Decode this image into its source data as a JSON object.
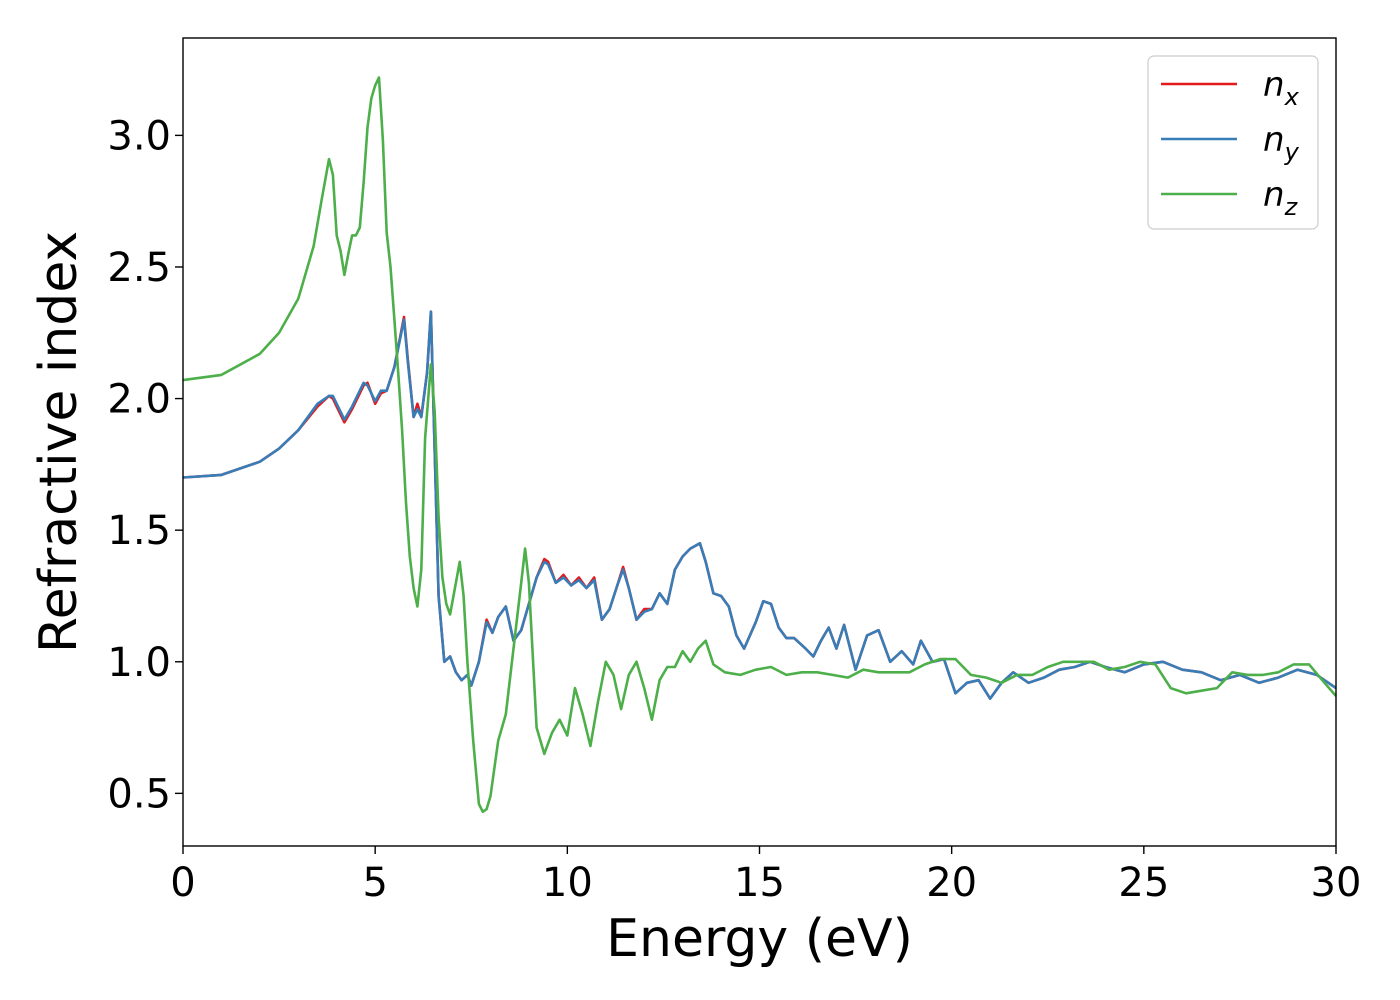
{
  "chart_data": {
    "type": "line",
    "xlabel": "Energy (eV)",
    "ylabel": "Refractive index",
    "xlim": [
      0,
      30
    ],
    "ylim": [
      0.3,
      3.37
    ],
    "xticks": [
      0,
      5,
      10,
      15,
      20,
      25,
      30
    ],
    "xtick_labels": [
      "0",
      "5",
      "10",
      "15",
      "20",
      "25",
      "30"
    ],
    "yticks": [
      0.5,
      1.0,
      1.5,
      2.0,
      2.5,
      3.0
    ],
    "ytick_labels": [
      "0.5",
      "1.0",
      "1.5",
      "2.0",
      "2.5",
      "3.0"
    ],
    "grid": false,
    "legend_position": "top-right",
    "series": [
      {
        "name": "n_x",
        "legend_base": "n",
        "legend_sub": "x",
        "color": "#e41a1c",
        "x": [
          0,
          1,
          2,
          2.5,
          3,
          3.5,
          3.8,
          3.9,
          4.0,
          4.2,
          4.4,
          4.7,
          4.8,
          5.0,
          5.15,
          5.3,
          5.5,
          5.75,
          5.85,
          6.0,
          6.1,
          6.2,
          6.35,
          6.45,
          6.55,
          6.65,
          6.8,
          6.95,
          7.1,
          7.25,
          7.4,
          7.5,
          7.7,
          7.9,
          8.05,
          8.2,
          8.4,
          8.6,
          8.8,
          9.0,
          9.2,
          9.4,
          9.5,
          9.7,
          9.9,
          10.1,
          10.3,
          10.5,
          10.7,
          10.9,
          11.1,
          11.3,
          11.45,
          11.6,
          11.8,
          12.0,
          12.2,
          12.4,
          12.6,
          12.8,
          13.0,
          13.2,
          13.45,
          13.6,
          13.8,
          14.0,
          14.2,
          14.4,
          14.6,
          14.9,
          15.1,
          15.3,
          15.5,
          15.7,
          15.9,
          16.2,
          16.4,
          16.6,
          16.8,
          17.0,
          17.2,
          17.5,
          17.8,
          18.1,
          18.4,
          18.7,
          19.0,
          19.2,
          19.5,
          19.8,
          20.1,
          20.4,
          20.7,
          21.0,
          21.3,
          21.6,
          22.0,
          22.4,
          22.8,
          23.2,
          23.6,
          24.0,
          24.5,
          25.0,
          25.5,
          26.0,
          26.5,
          27.0,
          27.5,
          28.0,
          28.5,
          29.0,
          29.5,
          30.0
        ],
        "y": [
          1.7,
          1.71,
          1.76,
          1.81,
          1.88,
          1.97,
          2.01,
          2.0,
          1.97,
          1.91,
          1.96,
          2.05,
          2.06,
          1.98,
          2.02,
          2.03,
          2.12,
          2.31,
          2.15,
          1.93,
          1.98,
          1.93,
          2.1,
          2.33,
          1.8,
          1.25,
          1.0,
          1.02,
          0.96,
          0.93,
          0.95,
          0.91,
          1.0,
          1.16,
          1.11,
          1.17,
          1.21,
          1.08,
          1.12,
          1.22,
          1.32,
          1.39,
          1.38,
          1.3,
          1.33,
          1.29,
          1.32,
          1.28,
          1.32,
          1.16,
          1.2,
          1.29,
          1.36,
          1.28,
          1.16,
          1.2,
          1.2,
          1.26,
          1.22,
          1.35,
          1.4,
          1.43,
          1.45,
          1.38,
          1.26,
          1.25,
          1.21,
          1.1,
          1.05,
          1.15,
          1.23,
          1.22,
          1.13,
          1.09,
          1.09,
          1.05,
          1.02,
          1.08,
          1.13,
          1.05,
          1.14,
          0.97,
          1.1,
          1.12,
          1.0,
          1.04,
          0.99,
          1.08,
          1.0,
          1.01,
          0.88,
          0.92,
          0.93,
          0.86,
          0.92,
          0.96,
          0.92,
          0.94,
          0.97,
          0.98,
          1.0,
          0.98,
          0.96,
          0.99,
          1.0,
          0.97,
          0.96,
          0.93,
          0.95,
          0.92,
          0.94,
          0.97,
          0.95,
          0.9
        ]
      },
      {
        "name": "n_y",
        "legend_base": "n",
        "legend_sub": "y",
        "color": "#377eb8",
        "x": [
          0,
          1,
          2,
          2.5,
          3,
          3.5,
          3.8,
          3.9,
          4.0,
          4.2,
          4.4,
          4.7,
          4.8,
          5.0,
          5.15,
          5.3,
          5.5,
          5.75,
          5.85,
          6.0,
          6.1,
          6.2,
          6.35,
          6.45,
          6.55,
          6.65,
          6.8,
          6.95,
          7.1,
          7.25,
          7.4,
          7.5,
          7.7,
          7.9,
          8.05,
          8.2,
          8.4,
          8.6,
          8.8,
          9.0,
          9.2,
          9.4,
          9.5,
          9.7,
          9.9,
          10.1,
          10.3,
          10.5,
          10.7,
          10.9,
          11.1,
          11.3,
          11.45,
          11.6,
          11.8,
          12.0,
          12.2,
          12.4,
          12.6,
          12.8,
          13.0,
          13.2,
          13.45,
          13.6,
          13.8,
          14.0,
          14.2,
          14.4,
          14.6,
          14.9,
          15.1,
          15.3,
          15.5,
          15.7,
          15.9,
          16.2,
          16.4,
          16.6,
          16.8,
          17.0,
          17.2,
          17.5,
          17.8,
          18.1,
          18.4,
          18.7,
          19.0,
          19.2,
          19.5,
          19.8,
          20.1,
          20.4,
          20.7,
          21.0,
          21.3,
          21.6,
          22.0,
          22.4,
          22.8,
          23.2,
          23.6,
          24.0,
          24.5,
          25.0,
          25.5,
          26.0,
          26.5,
          27.0,
          27.5,
          28.0,
          28.5,
          29.0,
          29.5,
          30.0
        ],
        "y": [
          1.7,
          1.71,
          1.76,
          1.81,
          1.88,
          1.98,
          2.01,
          2.01,
          1.98,
          1.92,
          1.97,
          2.06,
          2.05,
          1.99,
          2.03,
          2.03,
          2.12,
          2.3,
          2.14,
          1.93,
          1.96,
          1.93,
          2.1,
          2.33,
          1.8,
          1.25,
          1.0,
          1.02,
          0.96,
          0.93,
          0.95,
          0.91,
          1.0,
          1.15,
          1.11,
          1.17,
          1.21,
          1.08,
          1.12,
          1.22,
          1.32,
          1.38,
          1.37,
          1.3,
          1.32,
          1.29,
          1.31,
          1.28,
          1.31,
          1.16,
          1.2,
          1.29,
          1.35,
          1.28,
          1.16,
          1.19,
          1.2,
          1.26,
          1.22,
          1.35,
          1.4,
          1.43,
          1.45,
          1.38,
          1.26,
          1.25,
          1.21,
          1.1,
          1.05,
          1.15,
          1.23,
          1.22,
          1.13,
          1.09,
          1.09,
          1.05,
          1.02,
          1.08,
          1.13,
          1.05,
          1.14,
          0.97,
          1.1,
          1.12,
          1.0,
          1.04,
          0.99,
          1.08,
          1.0,
          1.01,
          0.88,
          0.92,
          0.93,
          0.86,
          0.92,
          0.96,
          0.92,
          0.94,
          0.97,
          0.98,
          1.0,
          0.98,
          0.96,
          0.99,
          1.0,
          0.97,
          0.96,
          0.93,
          0.95,
          0.92,
          0.94,
          0.97,
          0.95,
          0.9
        ]
      },
      {
        "name": "n_z",
        "legend_base": "n",
        "legend_sub": "z",
        "color": "#4daf4a",
        "x": [
          0,
          1,
          2,
          2.5,
          3,
          3.4,
          3.6,
          3.8,
          3.9,
          4.0,
          4.1,
          4.2,
          4.3,
          4.4,
          4.5,
          4.6,
          4.7,
          4.8,
          4.9,
          5.0,
          5.1,
          5.2,
          5.3,
          5.4,
          5.5,
          5.6,
          5.7,
          5.8,
          5.9,
          6.0,
          6.1,
          6.2,
          6.3,
          6.45,
          6.55,
          6.65,
          6.75,
          6.85,
          6.95,
          7.1,
          7.2,
          7.3,
          7.4,
          7.55,
          7.7,
          7.8,
          7.9,
          8.0,
          8.2,
          8.4,
          8.6,
          8.8,
          8.9,
          9.0,
          9.2,
          9.4,
          9.6,
          9.8,
          10.0,
          10.2,
          10.4,
          10.6,
          10.8,
          11.0,
          11.2,
          11.4,
          11.6,
          11.8,
          12.0,
          12.2,
          12.4,
          12.6,
          12.8,
          13.0,
          13.2,
          13.4,
          13.6,
          13.8,
          14.1,
          14.5,
          14.9,
          15.3,
          15.7,
          16.1,
          16.5,
          16.9,
          17.3,
          17.7,
          18.1,
          18.5,
          18.9,
          19.3,
          19.7,
          20.1,
          20.5,
          20.9,
          21.3,
          21.7,
          22.1,
          22.5,
          22.9,
          23.3,
          23.7,
          24.1,
          24.5,
          24.9,
          25.3,
          25.7,
          26.1,
          26.5,
          26.9,
          27.3,
          27.7,
          28.1,
          28.5,
          28.9,
          29.3,
          29.7,
          30.0
        ],
        "y": [
          2.07,
          2.09,
          2.17,
          2.25,
          2.38,
          2.58,
          2.75,
          2.91,
          2.85,
          2.62,
          2.56,
          2.47,
          2.55,
          2.62,
          2.62,
          2.65,
          2.82,
          3.03,
          3.14,
          3.19,
          3.22,
          2.98,
          2.63,
          2.5,
          2.3,
          2.1,
          1.88,
          1.61,
          1.4,
          1.28,
          1.21,
          1.35,
          1.85,
          2.13,
          1.95,
          1.55,
          1.32,
          1.22,
          1.18,
          1.3,
          1.38,
          1.25,
          1.0,
          0.7,
          0.46,
          0.43,
          0.44,
          0.49,
          0.7,
          0.8,
          1.05,
          1.3,
          1.43,
          1.3,
          0.75,
          0.65,
          0.73,
          0.78,
          0.72,
          0.9,
          0.8,
          0.68,
          0.85,
          1.0,
          0.95,
          0.82,
          0.95,
          1.0,
          0.9,
          0.78,
          0.93,
          0.98,
          0.98,
          1.04,
          1.0,
          1.05,
          1.08,
          0.99,
          0.96,
          0.95,
          0.97,
          0.98,
          0.95,
          0.96,
          0.96,
          0.95,
          0.94,
          0.97,
          0.96,
          0.96,
          0.96,
          0.99,
          1.01,
          1.01,
          0.95,
          0.94,
          0.92,
          0.95,
          0.95,
          0.98,
          1.0,
          1.0,
          1.0,
          0.97,
          0.98,
          1.0,
          0.99,
          0.9,
          0.88,
          0.89,
          0.9,
          0.96,
          0.95,
          0.95,
          0.96,
          0.99,
          0.99,
          0.92,
          0.87
        ]
      }
    ]
  }
}
